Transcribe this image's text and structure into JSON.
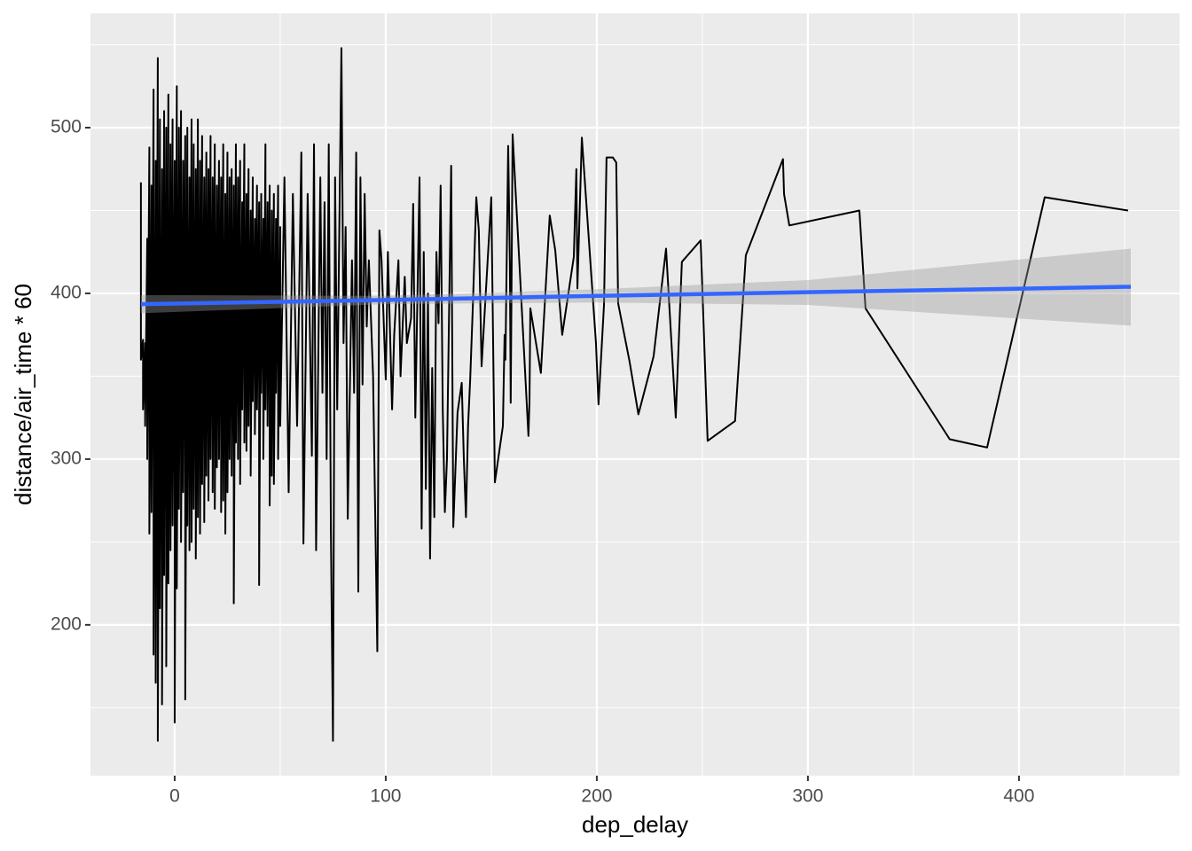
{
  "chart_data": {
    "type": "line",
    "x_label": "dep_delay",
    "y_label": "distance/air_time * 60",
    "xlim": [
      -39.9,
      476.1
    ],
    "ylim": [
      109,
      569
    ],
    "xticks": [
      0,
      100,
      200,
      300,
      400
    ],
    "yticks": [
      200,
      300,
      400,
      500
    ],
    "x_minor_ticks": [
      -50,
      50,
      150,
      250,
      350,
      450
    ],
    "y_minor_ticks": [
      150,
      250,
      350,
      450,
      550
    ],
    "grid": true,
    "series": [
      {
        "color": "#000000",
        "x": [
          -16,
          -16,
          -15,
          -15,
          -14,
          -14,
          -13,
          -13,
          -12,
          -12,
          -11,
          -11,
          -10,
          -10,
          -9,
          -9,
          -8,
          -8,
          -7,
          -7,
          -6,
          -6,
          -5,
          -5,
          -4,
          -4,
          -3,
          -3,
          -2,
          -2,
          -1,
          -1,
          0,
          0,
          1,
          1,
          2,
          2,
          3,
          3,
          4,
          4,
          5,
          5,
          6,
          6,
          7,
          7,
          8,
          8,
          9,
          9,
          10,
          10,
          11,
          11,
          12,
          12,
          13,
          13,
          14,
          14,
          15,
          15,
          16,
          16,
          17,
          17,
          18,
          18,
          19,
          19,
          20,
          20,
          21,
          21,
          22,
          22,
          23,
          23,
          24,
          24,
          25,
          25,
          26,
          26,
          27,
          27,
          28,
          28,
          29,
          29,
          30,
          30,
          31,
          31,
          32,
          32,
          33,
          33,
          34,
          34,
          35,
          35,
          36,
          36,
          37,
          37,
          38,
          38,
          39,
          39,
          40,
          40,
          41,
          41,
          42,
          42,
          43,
          43,
          44,
          44,
          45,
          45,
          46,
          46,
          47,
          47,
          48,
          48,
          49,
          49,
          50,
          50,
          52,
          54,
          56,
          58,
          60,
          61,
          63,
          65,
          66,
          67,
          69,
          70,
          71,
          72,
          73,
          74,
          75,
          76,
          77,
          79,
          80,
          81,
          82,
          84,
          85,
          86,
          87,
          88,
          89,
          90,
          91,
          92,
          94,
          96,
          97,
          98,
          100,
          101,
          103,
          104,
          106,
          107,
          109,
          110,
          112,
          113,
          114,
          116,
          117,
          118,
          119,
          120,
          121,
          122,
          123,
          124,
          125,
          126,
          127,
          128,
          129,
          131,
          132,
          134,
          136,
          137,
          138,
          139,
          140,
          141.2,
          142.9,
          144.1,
          145.4,
          150,
          151.7,
          155.5,
          156.3,
          156.7,
          158,
          158.8,
          159.2,
          160.1,
          165.1,
          167.6,
          168.1,
          168.5,
          173.5,
          177.7,
          180.3,
          183.6,
          189.1,
          190.3,
          190.8,
          192.9,
          199.6,
          200.8,
          203.4,
          204.6,
          207.6,
          209.2,
          210.1,
          215.5,
          219.7,
          226.9,
          232.8,
          237.4,
          240.3,
          249.2,
          252.5,
          265.5,
          270.6,
          288.2,
          288.7,
          291.2,
          324.4,
          327.3,
          367.2,
          384.9,
          412.2,
          451.7
        ],
        "values": [
          467,
          360,
          372,
          330,
          370,
          320,
          433,
          300,
          488,
          255,
          465,
          268,
          523,
          182,
          480,
          165,
          542,
          130,
          505,
          210,
          475,
          152,
          510,
          230,
          500,
          175,
          520,
          225,
          490,
          245,
          505,
          260,
          480,
          141,
          525,
          222,
          500,
          270,
          510,
          250,
          480,
          280,
          495,
          155,
          500,
          260,
          470,
          245,
          505,
          250,
          490,
          270,
          475,
          240,
          505,
          265,
          480,
          255,
          495,
          285,
          470,
          262,
          485,
          290,
          475,
          275,
          495,
          300,
          470,
          280,
          490,
          270,
          465,
          295,
          480,
          300,
          470,
          268,
          490,
          275,
          460,
          255,
          485,
          280,
          470,
          300,
          475,
          290,
          465,
          213,
          490,
          310,
          470,
          300,
          480,
          285,
          455,
          330,
          490,
          310,
          460,
          305,
          475,
          320,
          450,
          290,
          470,
          335,
          445,
          315,
          465,
          330,
          455,
          224,
          460,
          340,
          445,
          300,
          490,
          330,
          455,
          320,
          465,
          272,
          450,
          290,
          460,
          285,
          445,
          340,
          465,
          300,
          440,
          320,
          470,
          280,
          460,
          320,
          485,
          249,
          460,
          302,
          490,
          245,
          470,
          340,
          455,
          300,
          490,
          258,
          130,
          470,
          330,
          548,
          370,
          440,
          264,
          420,
          340,
          485,
          220,
          470,
          345,
          460,
          380,
          420,
          350,
          184,
          438,
          420,
          348,
          425,
          330,
          375,
          420,
          350,
          410,
          370,
          385,
          454,
          325,
          470,
          258,
          425,
          282,
          400,
          240,
          355,
          265,
          425,
          382,
          465,
          330,
          268,
          300,
          477,
          259,
          328,
          346,
          300,
          265,
          320,
          348,
          390,
          458,
          438,
          356,
          458,
          286,
          320,
          375,
          360,
          489,
          419,
          334,
          496,
          375,
          314,
          335,
          391,
          352,
          447,
          426,
          375,
          422,
          475,
          403,
          494,
          370,
          333,
          393,
          482,
          482,
          479,
          394,
          359,
          327,
          362,
          427,
          325,
          419,
          432,
          311,
          323,
          423,
          481,
          460,
          441,
          450,
          391,
          312,
          307,
          458,
          450
        ]
      },
      {
        "color": "#3366ff",
        "fill_color": "#999999",
        "x": [
          -16,
          100,
          200,
          300,
          453
        ],
        "values": [
          393.5,
          396,
          398.5,
          400.7,
          404
        ],
        "lower": [
          388,
          393.5,
          394.5,
          393,
          380.5
        ],
        "upper": [
          399,
          398.5,
          402.5,
          408,
          427
        ]
      }
    ]
  }
}
